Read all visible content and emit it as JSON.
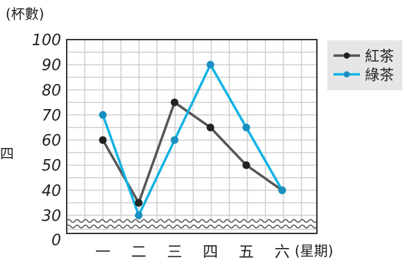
{
  "chart_data": {
    "type": "line",
    "y_unit_label": "(杯數)",
    "x_unit_label": "(星期)",
    "side_label": "四",
    "categories": [
      "一",
      "二",
      "三",
      "四",
      "五",
      "六"
    ],
    "y_ticks": [
      0,
      30,
      40,
      50,
      60,
      70,
      80,
      90,
      100
    ],
    "ylim": [
      30,
      100
    ],
    "axis_break": true,
    "grid": true,
    "legend_position": "top-right",
    "series": [
      {
        "name": "紅茶",
        "values": [
          60,
          35,
          75,
          65,
          50,
          40
        ],
        "color": "#555555",
        "marker_color": "#222222"
      },
      {
        "name": "綠茶",
        "values": [
          70,
          30,
          60,
          90,
          65,
          40
        ],
        "color": "#11b3e3",
        "marker_color": "#1a8fc0"
      }
    ]
  }
}
